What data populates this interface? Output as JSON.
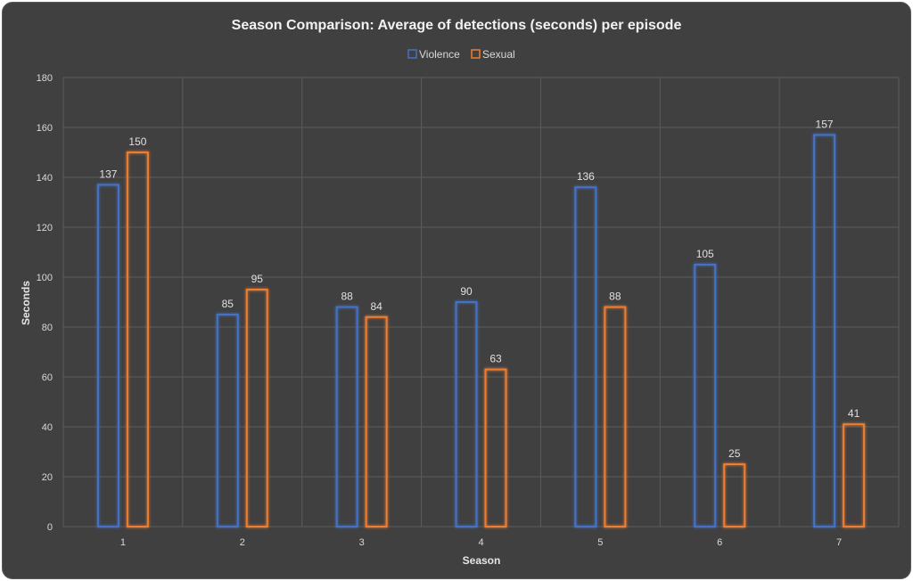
{
  "chart_data": {
    "type": "bar",
    "title": "Season Comparison: Average of detections (seconds) per episode",
    "xlabel": "Season",
    "ylabel": "Seconds",
    "categories": [
      "1",
      "2",
      "3",
      "4",
      "5",
      "6",
      "7"
    ],
    "series": [
      {
        "name": "Violence",
        "values": [
          137,
          85,
          88,
          90,
          136,
          105,
          157
        ],
        "color": "#4472c4"
      },
      {
        "name": "Sexual",
        "values": [
          150,
          95,
          84,
          63,
          88,
          25,
          41
        ],
        "color": "#ed7d31"
      }
    ],
    "ylim": [
      0,
      180
    ],
    "yticks": [
      "0",
      "20",
      "40",
      "60",
      "80",
      "100",
      "120",
      "140",
      "160",
      "180"
    ],
    "grid": true,
    "legend_position": "top",
    "background": "#404040"
  }
}
